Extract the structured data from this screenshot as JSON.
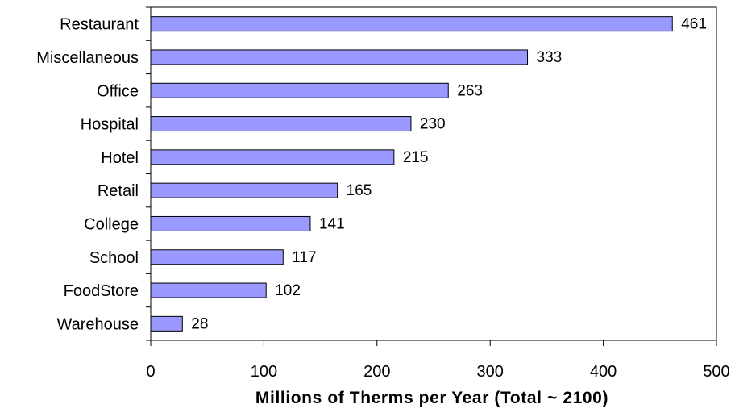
{
  "chart_data": {
    "type": "bar",
    "orientation": "horizontal",
    "categories": [
      "Restaurant",
      "Miscellaneous",
      "Office",
      "Hospital",
      "Hotel",
      "Retail",
      "College",
      "School",
      "FoodStore",
      "Warehouse"
    ],
    "values": [
      461,
      333,
      263,
      230,
      215,
      165,
      141,
      117,
      102,
      28
    ],
    "value_labels": [
      "461",
      "333",
      "263",
      "230",
      "215",
      "165",
      "141",
      "117",
      "102",
      "28"
    ],
    "xlabel": "Millions of Therms per Year (Total ~ 2100)",
    "ylabel": "",
    "xlim": [
      0,
      500
    ],
    "x_ticks": [
      0,
      100,
      200,
      300,
      400,
      500
    ],
    "x_tick_labels": [
      "0",
      "100",
      "200",
      "300",
      "400",
      "500"
    ],
    "grid": false,
    "legend": "none",
    "colors": {
      "bar_fill": "#9999ff",
      "bar_stroke": "#000000",
      "axis": "#000000",
      "background": "#ffffff"
    }
  }
}
